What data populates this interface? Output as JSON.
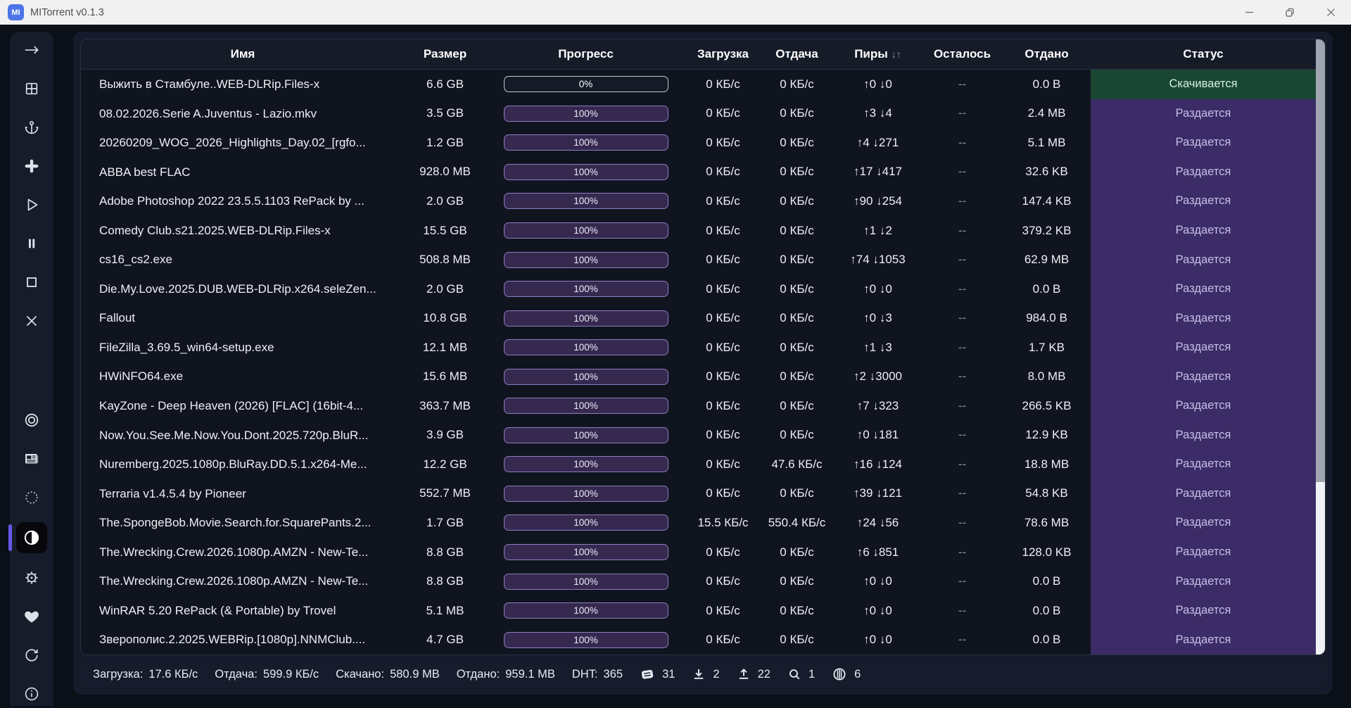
{
  "window": {
    "title": "MITorrent v0.1.3",
    "logo": "MI",
    "controls": [
      "minimize-icon",
      "restore-icon",
      "close-icon"
    ]
  },
  "colors": {
    "accent": "#6757e8",
    "logo-bg": "#4d74e8",
    "titlebar-bg": "#f1f1f1",
    "status-downloading-bg": "#1a4634",
    "status-downloading-text": "#d4f2e0",
    "status-seeding-bg": "#3b2b66",
    "status-seeding-text": "#c8bde8",
    "progress-complete-fill": "#36294f",
    "progress-complete-border": "#8d7cc0"
  },
  "sidebar": {
    "items": [
      {
        "icon": "arrow-right-icon",
        "active": false
      },
      {
        "icon": "grid-icon",
        "active": false
      },
      {
        "icon": "anchor-icon",
        "active": false
      },
      {
        "icon": "plus-icon",
        "active": false
      },
      {
        "icon": "play-icon",
        "active": false
      },
      {
        "icon": "pause-icon",
        "active": false
      },
      {
        "icon": "stop-icon",
        "active": false
      },
      {
        "icon": "x-icon",
        "active": false
      },
      {
        "icon": "target-icon",
        "active": false
      },
      {
        "icon": "newspaper-icon",
        "active": false
      },
      {
        "icon": "dotted-circle-icon",
        "active": false
      },
      {
        "icon": "contrast-icon",
        "active": true
      },
      {
        "icon": "gear-icon",
        "active": false
      },
      {
        "icon": "heart-icon",
        "active": false
      },
      {
        "icon": "refresh-icon",
        "active": false
      },
      {
        "icon": "info-icon",
        "active": false
      }
    ]
  },
  "table": {
    "columns": [
      {
        "label": "Имя"
      },
      {
        "label": "Размер"
      },
      {
        "label": "Прогресс"
      },
      {
        "label": "Загрузка"
      },
      {
        "label": "Отдача"
      },
      {
        "label": "Пиры",
        "sort": "↓↑"
      },
      {
        "label": "Осталось"
      },
      {
        "label": "Отдано"
      },
      {
        "label": "Статус"
      }
    ],
    "rows": [
      {
        "name": "Выжить в Стамбуле..WEB-DLRip.Files-x",
        "size": "6.6 GB",
        "progress": 0,
        "progress_label": "0%",
        "down": "0 КБ/с",
        "up": "0 КБ/с",
        "peers": "↑0 ↓0",
        "eta": "--",
        "uploaded": "0.0 B",
        "status": "Скачивается",
        "status_type": "downloading"
      },
      {
        "name": "08.02.2026.Serie A.Juventus - Lazio.mkv",
        "size": "3.5 GB",
        "progress": 100,
        "progress_label": "100%",
        "down": "0 КБ/с",
        "up": "0 КБ/с",
        "peers": "↑3 ↓4",
        "eta": "--",
        "uploaded": "2.4 MB",
        "status": "Раздается",
        "status_type": "seeding"
      },
      {
        "name": "20260209_WOG_2026_Highlights_Day.02_[rgfo...",
        "size": "1.2 GB",
        "progress": 100,
        "progress_label": "100%",
        "down": "0 КБ/с",
        "up": "0 КБ/с",
        "peers": "↑4 ↓271",
        "eta": "--",
        "uploaded": "5.1 MB",
        "status": "Раздается",
        "status_type": "seeding"
      },
      {
        "name": "ABBA best FLAC",
        "size": "928.0 MB",
        "progress": 100,
        "progress_label": "100%",
        "down": "0 КБ/с",
        "up": "0 КБ/с",
        "peers": "↑17 ↓417",
        "eta": "--",
        "uploaded": "32.6 KB",
        "status": "Раздается",
        "status_type": "seeding"
      },
      {
        "name": "Adobe Photoshop 2022 23.5.5.1103 RePack by ...",
        "size": "2.0 GB",
        "progress": 100,
        "progress_label": "100%",
        "down": "0 КБ/с",
        "up": "0 КБ/с",
        "peers": "↑90 ↓254",
        "eta": "--",
        "uploaded": "147.4 KB",
        "status": "Раздается",
        "status_type": "seeding"
      },
      {
        "name": "Comedy Club.s21.2025.WEB-DLRip.Files-x",
        "size": "15.5 GB",
        "progress": 100,
        "progress_label": "100%",
        "down": "0 КБ/с",
        "up": "0 КБ/с",
        "peers": "↑1 ↓2",
        "eta": "--",
        "uploaded": "379.2 KB",
        "status": "Раздается",
        "status_type": "seeding"
      },
      {
        "name": "cs16_cs2.exe",
        "size": "508.8 MB",
        "progress": 100,
        "progress_label": "100%",
        "down": "0 КБ/с",
        "up": "0 КБ/с",
        "peers": "↑74 ↓1053",
        "eta": "--",
        "uploaded": "62.9 MB",
        "status": "Раздается",
        "status_type": "seeding"
      },
      {
        "name": "Die.My.Love.2025.DUB.WEB-DLRip.x264.seleZen...",
        "size": "2.0 GB",
        "progress": 100,
        "progress_label": "100%",
        "down": "0 КБ/с",
        "up": "0 КБ/с",
        "peers": "↑0 ↓0",
        "eta": "--",
        "uploaded": "0.0 B",
        "status": "Раздается",
        "status_type": "seeding"
      },
      {
        "name": "Fallout",
        "size": "10.8 GB",
        "progress": 100,
        "progress_label": "100%",
        "down": "0 КБ/с",
        "up": "0 КБ/с",
        "peers": "↑0 ↓3",
        "eta": "--",
        "uploaded": "984.0 B",
        "status": "Раздается",
        "status_type": "seeding"
      },
      {
        "name": "FileZilla_3.69.5_win64-setup.exe",
        "size": "12.1 MB",
        "progress": 100,
        "progress_label": "100%",
        "down": "0 КБ/с",
        "up": "0 КБ/с",
        "peers": "↑1 ↓3",
        "eta": "--",
        "uploaded": "1.7 KB",
        "status": "Раздается",
        "status_type": "seeding"
      },
      {
        "name": "HWiNFO64.exe",
        "size": "15.6 MB",
        "progress": 100,
        "progress_label": "100%",
        "down": "0 КБ/с",
        "up": "0 КБ/с",
        "peers": "↑2 ↓3000",
        "eta": "--",
        "uploaded": "8.0 MB",
        "status": "Раздается",
        "status_type": "seeding"
      },
      {
        "name": "KayZone - Deep Heaven (2026) [FLAC] (16bit-4...",
        "size": "363.7 MB",
        "progress": 100,
        "progress_label": "100%",
        "down": "0 КБ/с",
        "up": "0 КБ/с",
        "peers": "↑7 ↓323",
        "eta": "--",
        "uploaded": "266.5 KB",
        "status": "Раздается",
        "status_type": "seeding"
      },
      {
        "name": "Now.You.See.Me.Now.You.Dont.2025.720p.BluR...",
        "size": "3.9 GB",
        "progress": 100,
        "progress_label": "100%",
        "down": "0 КБ/с",
        "up": "0 КБ/с",
        "peers": "↑0 ↓181",
        "eta": "--",
        "uploaded": "12.9 KB",
        "status": "Раздается",
        "status_type": "seeding"
      },
      {
        "name": "Nuremberg.2025.1080p.BluRay.DD.5.1.x264-Me...",
        "size": "12.2 GB",
        "progress": 100,
        "progress_label": "100%",
        "down": "0 КБ/с",
        "up": "47.6 КБ/с",
        "peers": "↑16 ↓124",
        "eta": "--",
        "uploaded": "18.8 MB",
        "status": "Раздается",
        "status_type": "seeding"
      },
      {
        "name": "Terraria v1.4.5.4 by Pioneer",
        "size": "552.7 MB",
        "progress": 100,
        "progress_label": "100%",
        "down": "0 КБ/с",
        "up": "0 КБ/с",
        "peers": "↑39 ↓121",
        "eta": "--",
        "uploaded": "54.8 KB",
        "status": "Раздается",
        "status_type": "seeding"
      },
      {
        "name": "The.SpongeBob.Movie.Search.for.SquarePants.2...",
        "size": "1.7 GB",
        "progress": 100,
        "progress_label": "100%",
        "down": "15.5 КБ/с",
        "up": "550.4 КБ/с",
        "peers": "↑24 ↓56",
        "eta": "--",
        "uploaded": "78.6 MB",
        "status": "Раздается",
        "status_type": "seeding"
      },
      {
        "name": "The.Wrecking.Crew.2026.1080p.AMZN - New-Te...",
        "size": "8.8 GB",
        "progress": 100,
        "progress_label": "100%",
        "down": "0 КБ/с",
        "up": "0 КБ/с",
        "peers": "↑6 ↓851",
        "eta": "--",
        "uploaded": "128.0 KB",
        "status": "Раздается",
        "status_type": "seeding"
      },
      {
        "name": "The.Wrecking.Crew.2026.1080p.AMZN - New-Te...",
        "size": "8.8 GB",
        "progress": 100,
        "progress_label": "100%",
        "down": "0 КБ/с",
        "up": "0 КБ/с",
        "peers": "↑0 ↓0",
        "eta": "--",
        "uploaded": "0.0 B",
        "status": "Раздается",
        "status_type": "seeding"
      },
      {
        "name": "WinRAR 5.20 RePack (& Portable) by Trovel",
        "size": "5.1 MB",
        "progress": 100,
        "progress_label": "100%",
        "down": "0 КБ/с",
        "up": "0 КБ/с",
        "peers": "↑0 ↓0",
        "eta": "--",
        "uploaded": "0.0 B",
        "status": "Раздается",
        "status_type": "seeding"
      },
      {
        "name": "Зверополис.2.2025.WEBRip.[1080p].NNMClub....",
        "size": "4.7 GB",
        "progress": 100,
        "progress_label": "100%",
        "down": "0 КБ/с",
        "up": "0 КБ/с",
        "peers": "↑0 ↓0",
        "eta": "--",
        "uploaded": "0.0 B",
        "status": "Раздается",
        "status_type": "seeding"
      }
    ]
  },
  "statusbar": {
    "download_label": "Загрузка:",
    "download_value": "17.6 КБ/с",
    "upload_label": "Отдача:",
    "upload_value": "599.9 КБ/с",
    "downloaded_label": "Скачано:",
    "downloaded_value": "580.9 MB",
    "uploaded_label": "Отдано:",
    "uploaded_value": "959.1 MB",
    "dht_label": "DHT:",
    "dht_value": "365",
    "counters": [
      {
        "icon": "stack-icon",
        "value": "31"
      },
      {
        "icon": "download-icon",
        "value": "2"
      },
      {
        "icon": "upload-icon",
        "value": "22"
      },
      {
        "icon": "search-icon",
        "value": "1"
      },
      {
        "icon": "pieces-icon",
        "value": "6"
      }
    ]
  }
}
